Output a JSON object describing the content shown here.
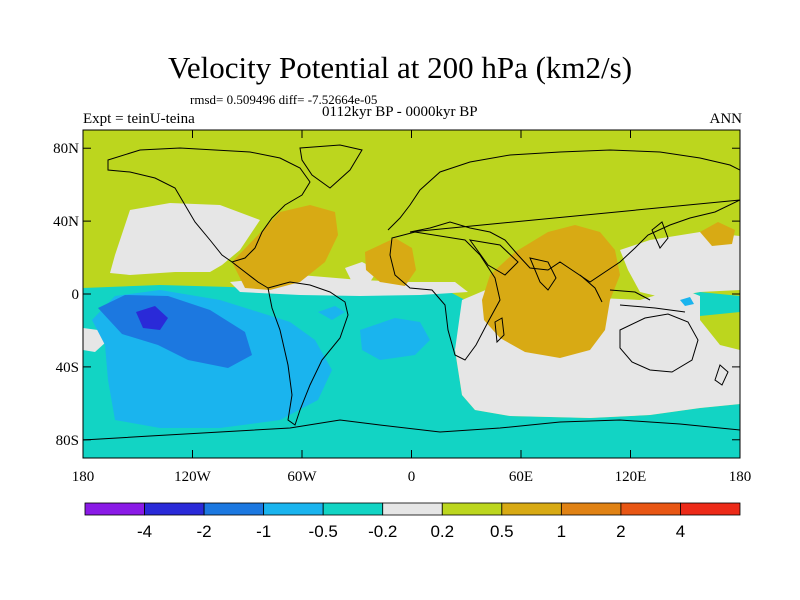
{
  "title": "Velocity Potential at 200 hPa (km2/s)",
  "stats_line": "rmsd= 0.509496 diff= -7.52664e-05",
  "period": "0112kyr BP - 0000kyr BP",
  "experiment": "Expt = teinU-teina",
  "season": "ANN",
  "map": {
    "projection": "cylindrical equidistant",
    "lon_range": [
      -180,
      180
    ],
    "lat_range": [
      -90,
      90
    ],
    "lat_ticks": [
      {
        "lat": 80,
        "label": "80N"
      },
      {
        "lat": 40,
        "label": "40N"
      },
      {
        "lat": 0,
        "label": "0"
      },
      {
        "lat": -40,
        "label": "40S"
      },
      {
        "lat": -80,
        "label": "80S"
      }
    ],
    "lon_ticks": [
      {
        "lon": -180,
        "label": "180"
      },
      {
        "lon": -120,
        "label": "120W"
      },
      {
        "lon": -60,
        "label": "60W"
      },
      {
        "lon": 0,
        "label": "0"
      },
      {
        "lon": 60,
        "label": "60E"
      },
      {
        "lon": 120,
        "label": "120E"
      },
      {
        "lon": 180,
        "label": "180"
      }
    ]
  },
  "colorbar": {
    "colors": [
      "#8a1ae6",
      "#2a2ad8",
      "#1c78e0",
      "#1ab4ee",
      "#12d4c4",
      "#e6e6e6",
      "#bcd61e",
      "#d8aa14",
      "#e08214",
      "#e85614",
      "#ec2a18"
    ],
    "labels": [
      "-4",
      "-2",
      "-1",
      "-0.5",
      "-0.2",
      "0.2",
      "0.5",
      "1",
      "2",
      "4"
    ]
  },
  "colors": {
    "coastline": "#000000",
    "frame": "#000000"
  }
}
